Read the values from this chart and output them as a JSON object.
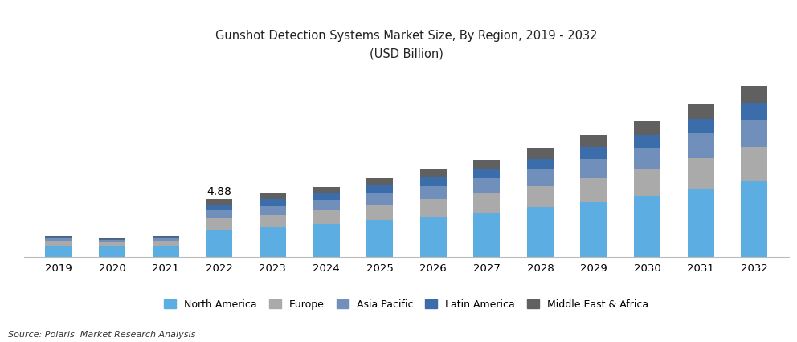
{
  "title_line1": "Gunshot Detection Systems Market Size, By Region, 2019 - 2032",
  "title_line2": "(USD Billion)",
  "source": "Source: Polaris  Market Research Analysis",
  "years": [
    2019,
    2020,
    2021,
    2022,
    2023,
    2024,
    2025,
    2026,
    2027,
    2028,
    2029,
    2030,
    2031,
    2032
  ],
  "annotation_year": 2022,
  "annotation_text": "4.88",
  "regions": [
    "North America",
    "Europe",
    "Asia Pacific",
    "Latin America",
    "Middle East & Africa"
  ],
  "colors": [
    "#5BADE2",
    "#AAAAAA",
    "#7090BB",
    "#3A6DAA",
    "#606060"
  ],
  "data": {
    "North America": [
      0.95,
      0.88,
      0.95,
      2.3,
      2.5,
      2.75,
      3.1,
      3.4,
      3.75,
      4.2,
      4.65,
      5.15,
      5.8,
      6.45
    ],
    "Europe": [
      0.35,
      0.3,
      0.35,
      0.95,
      1.05,
      1.15,
      1.3,
      1.45,
      1.6,
      1.8,
      2.0,
      2.25,
      2.55,
      2.85
    ],
    "Asia Pacific": [
      0.22,
      0.2,
      0.22,
      0.7,
      0.8,
      0.9,
      1.0,
      1.15,
      1.3,
      1.45,
      1.65,
      1.85,
      2.1,
      2.35
    ],
    "Latin America": [
      0.12,
      0.1,
      0.12,
      0.45,
      0.5,
      0.55,
      0.62,
      0.7,
      0.78,
      0.88,
      1.0,
      1.12,
      1.27,
      1.42
    ],
    "Middle East & Africa": [
      0.1,
      0.09,
      0.1,
      0.48,
      0.53,
      0.58,
      0.65,
      0.72,
      0.8,
      0.9,
      1.02,
      1.15,
      1.3,
      1.45
    ]
  },
  "bar_width": 0.5,
  "ylim": [
    0,
    16.0
  ],
  "background_color": "#ffffff",
  "title_fontsize": 10.5,
  "legend_fontsize": 9,
  "tick_fontsize": 9.5
}
